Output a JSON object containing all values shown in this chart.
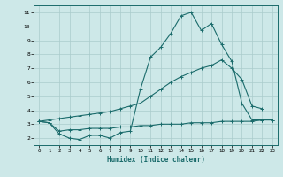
{
  "xlabel": "Humidex (Indice chaleur)",
  "bg_color": "#cde8e8",
  "grid_color": "#aacccc",
  "line_color": "#1a6b6b",
  "xlim": [
    -0.5,
    23.5
  ],
  "ylim": [
    1.5,
    11.5
  ],
  "xticks": [
    0,
    1,
    2,
    3,
    4,
    5,
    6,
    7,
    8,
    9,
    10,
    11,
    12,
    13,
    14,
    15,
    16,
    17,
    18,
    19,
    20,
    21,
    22,
    23
  ],
  "yticks": [
    2,
    3,
    4,
    5,
    6,
    7,
    8,
    9,
    10,
    11
  ],
  "line1_x": [
    0,
    1,
    2,
    3,
    4,
    5,
    6,
    7,
    8,
    9,
    10,
    11,
    12,
    13,
    14,
    15,
    16,
    17,
    18,
    19,
    20,
    21,
    22,
    23
  ],
  "line1_y": [
    3.2,
    3.1,
    2.3,
    2.0,
    1.9,
    2.2,
    2.2,
    2.0,
    2.4,
    2.5,
    5.5,
    7.8,
    8.5,
    9.5,
    10.75,
    11.0,
    9.7,
    10.2,
    8.7,
    7.5,
    4.5,
    3.3,
    3.3,
    3.3
  ],
  "line2_x": [
    0,
    1,
    2,
    3,
    4,
    5,
    6,
    7,
    8,
    9,
    10,
    11,
    12,
    13,
    14,
    15,
    16,
    17,
    18,
    19,
    20,
    21,
    22
  ],
  "line2_y": [
    3.2,
    3.3,
    3.4,
    3.5,
    3.6,
    3.7,
    3.8,
    3.9,
    4.1,
    4.3,
    4.5,
    5.0,
    5.5,
    6.0,
    6.4,
    6.7,
    7.0,
    7.2,
    7.6,
    7.0,
    6.2,
    4.3,
    4.1
  ],
  "line3_x": [
    0,
    1,
    2,
    3,
    4,
    5,
    6,
    7,
    8,
    9,
    10,
    11,
    12,
    13,
    14,
    15,
    16,
    17,
    18,
    19,
    20,
    21,
    22,
    23
  ],
  "line3_y": [
    3.2,
    3.1,
    2.5,
    2.6,
    2.6,
    2.7,
    2.7,
    2.7,
    2.8,
    2.8,
    2.9,
    2.9,
    3.0,
    3.0,
    3.0,
    3.1,
    3.1,
    3.1,
    3.2,
    3.2,
    3.2,
    3.2,
    3.3,
    3.3
  ]
}
